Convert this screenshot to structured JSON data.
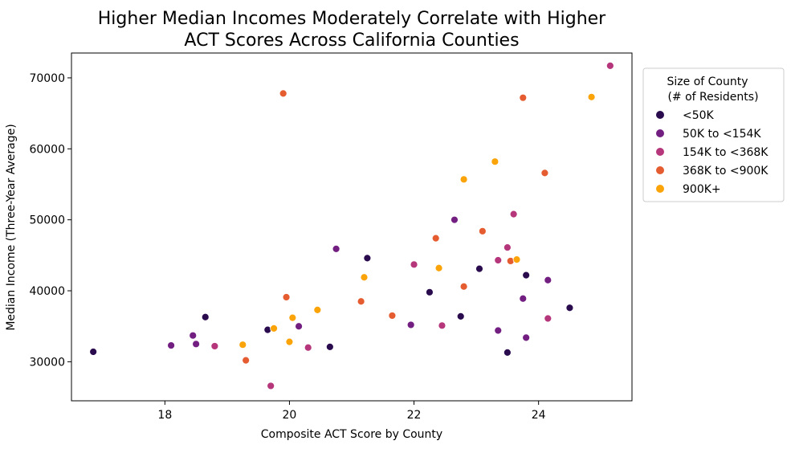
{
  "chart_data": {
    "type": "scatter",
    "title_lines": [
      "Higher Median Incomes Moderately Correlate with Higher",
      "ACT Scores Across California Counties"
    ],
    "xlabel": "Composite ACT Score by County",
    "ylabel": "Median Income (Three-Year Average)",
    "xlim": [
      16.5,
      25.5
    ],
    "ylim": [
      24500,
      73500
    ],
    "xticks": [
      18,
      20,
      22,
      24
    ],
    "yticks": [
      30000,
      40000,
      50000,
      60000,
      70000
    ],
    "grid": false,
    "legend": {
      "title_lines": [
        "Size of County",
        "(# of Residents)"
      ],
      "placement": "outside-right-top"
    },
    "series": [
      {
        "name": "<50K",
        "color": "#2a0c4e",
        "points": [
          [
            16.85,
            31400
          ],
          [
            18.65,
            36300
          ],
          [
            19.65,
            34500
          ],
          [
            20.65,
            32100
          ],
          [
            21.25,
            44600
          ],
          [
            22.25,
            39800
          ],
          [
            22.75,
            36400
          ],
          [
            23.05,
            43100
          ],
          [
            23.5,
            31300
          ],
          [
            23.8,
            42200
          ],
          [
            24.5,
            37600
          ]
        ]
      },
      {
        "name": "50K to <154K",
        "color": "#721f81",
        "points": [
          [
            18.1,
            32300
          ],
          [
            18.45,
            33700
          ],
          [
            18.5,
            32500
          ],
          [
            20.15,
            35000
          ],
          [
            20.75,
            45900
          ],
          [
            21.95,
            35200
          ],
          [
            22.65,
            50000
          ],
          [
            23.35,
            34400
          ],
          [
            23.75,
            38900
          ],
          [
            23.8,
            33400
          ],
          [
            24.15,
            41500
          ]
        ]
      },
      {
        "name": "154K to <368K",
        "color": "#b5367a",
        "points": [
          [
            18.8,
            32200
          ],
          [
            19.7,
            26600
          ],
          [
            20.3,
            32000
          ],
          [
            22.0,
            43700
          ],
          [
            22.45,
            35100
          ],
          [
            23.35,
            44300
          ],
          [
            23.5,
            46100
          ],
          [
            23.6,
            50800
          ],
          [
            24.15,
            36100
          ],
          [
            25.15,
            71700
          ]
        ]
      },
      {
        "name": "368K to <900K",
        "color": "#e55c30",
        "points": [
          [
            19.3,
            30200
          ],
          [
            19.9,
            67800
          ],
          [
            19.95,
            39100
          ],
          [
            21.15,
            38500
          ],
          [
            21.65,
            36500
          ],
          [
            22.35,
            47400
          ],
          [
            22.8,
            40600
          ],
          [
            23.1,
            48400
          ],
          [
            23.55,
            44200
          ],
          [
            23.75,
            67200
          ],
          [
            24.1,
            56600
          ]
        ]
      },
      {
        "name": "900K+",
        "color": "#fba40a",
        "points": [
          [
            19.25,
            32400
          ],
          [
            19.75,
            34700
          ],
          [
            20.0,
            32800
          ],
          [
            20.05,
            36200
          ],
          [
            20.45,
            37300
          ],
          [
            21.2,
            41900
          ],
          [
            22.4,
            43200
          ],
          [
            22.8,
            55700
          ],
          [
            23.3,
            58200
          ],
          [
            23.65,
            44400
          ],
          [
            24.85,
            67300
          ]
        ]
      }
    ]
  }
}
